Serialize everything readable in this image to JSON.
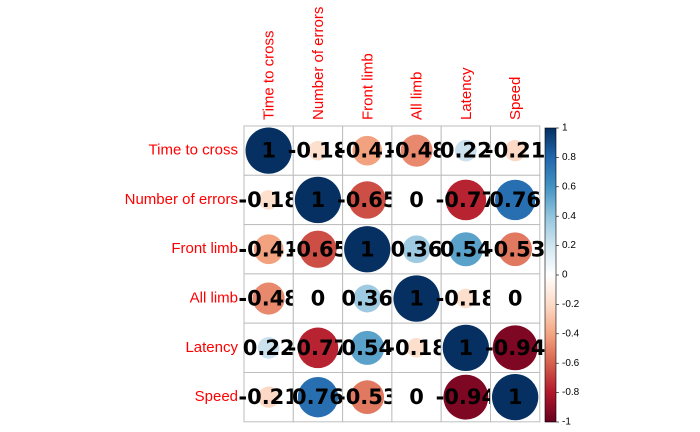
{
  "chart_data": {
    "type": "heatmap",
    "method": "circle",
    "variables": [
      "Time to cross",
      "Number of errors",
      "Front limb",
      "All limb",
      "Latency",
      "Speed"
    ],
    "matrix": [
      [
        1,
        -0.18,
        -0.41,
        -0.48,
        0.22,
        -0.21
      ],
      [
        -0.18,
        1,
        -0.65,
        0,
        -0.77,
        0.76
      ],
      [
        -0.41,
        -0.65,
        1,
        0.36,
        0.54,
        -0.53
      ],
      [
        -0.48,
        0,
        0.36,
        1,
        -0.18,
        0
      ],
      [
        0.22,
        -0.77,
        0.54,
        -0.18,
        1,
        -0.94
      ],
      [
        -0.21,
        0.76,
        -0.53,
        0,
        -0.94,
        1
      ]
    ],
    "labels": [
      [
        "1",
        "-0.18",
        "-0.41",
        "-0.48",
        "0.22",
        "-0.21"
      ],
      [
        "-0.18",
        "1",
        "-0.65",
        "0",
        "-0.77",
        "0.76"
      ],
      [
        "-0.41",
        "-0.65",
        "1",
        "0.36",
        "0.54",
        "-0.53"
      ],
      [
        "-0.48",
        "0",
        "0.36",
        "1",
        "-0.18",
        "0"
      ],
      [
        "0.22",
        "-0.77",
        "0.54",
        "-0.18",
        "1",
        "-0.94"
      ],
      [
        "-0.21",
        "0.76",
        "-0.53",
        "0",
        "-0.94",
        "1"
      ]
    ],
    "colorbar": {
      "range": [
        -1,
        1
      ],
      "ticks": [
        "1",
        "0.8",
        "0.6",
        "0.4",
        "0.2",
        "0",
        "-0.2",
        "-0.4",
        "-0.6",
        "-0.8",
        "-1"
      ]
    },
    "colors": {
      "label": "#ff0000",
      "grid": "#bebebe",
      "scale": [
        "#67001f",
        "#b2182b",
        "#d6604d",
        "#f4a582",
        "#fddbc7",
        "#ffffff",
        "#d1e5f0",
        "#92c5de",
        "#4393c3",
        "#2166ac",
        "#053061"
      ]
    },
    "grid": true,
    "legend": "right"
  }
}
